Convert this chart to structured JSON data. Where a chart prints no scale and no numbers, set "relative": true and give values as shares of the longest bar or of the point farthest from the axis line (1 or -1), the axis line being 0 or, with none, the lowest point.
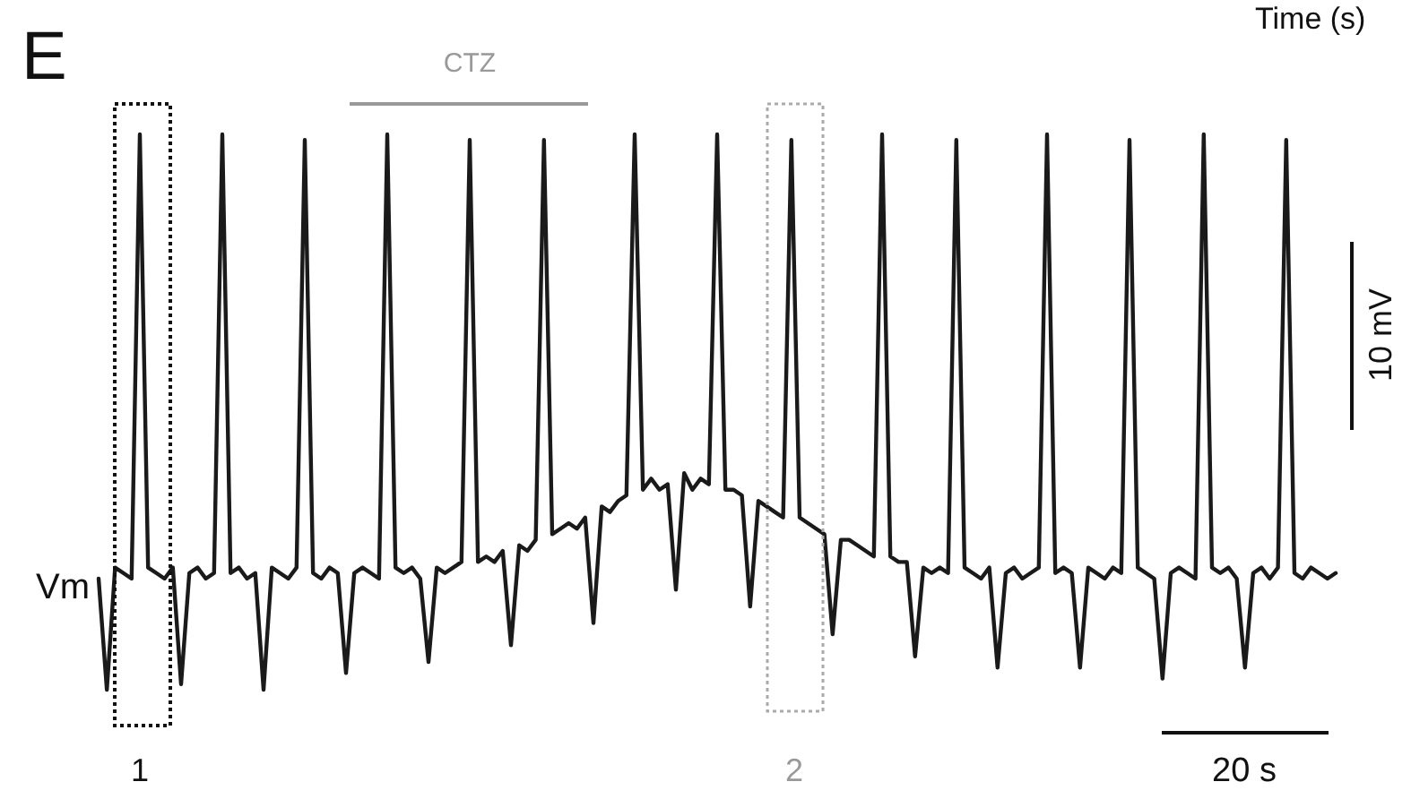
{
  "chart_data": {
    "type": "line",
    "relative": true,
    "color": "#1a1a1a",
    "ylabel": "Vm",
    "annotations": [
      "E",
      "Time (s)",
      "CTZ",
      "1",
      "2",
      "10 mV",
      "20 s"
    ],
    "categories": [
      null,
      null,
      null,
      null,
      null,
      null,
      null,
      null,
      null,
      null,
      null,
      null,
      null,
      null,
      null,
      null,
      null,
      null,
      null,
      null,
      null,
      null,
      null,
      null,
      null,
      null,
      null,
      null,
      null,
      null,
      null,
      null,
      null,
      null,
      null,
      null,
      null,
      null,
      null,
      null,
      null,
      null,
      null,
      null,
      null,
      null,
      null,
      null,
      null,
      null,
      null,
      null,
      null,
      null,
      null,
      null,
      null,
      null,
      null,
      null,
      null,
      null,
      null,
      null,
      null,
      null,
      null,
      null,
      null,
      null,
      null,
      null,
      null,
      null,
      null,
      null,
      null,
      null,
      null,
      null,
      null,
      null,
      null,
      null,
      null,
      null,
      null,
      null,
      null,
      null,
      null,
      null,
      null,
      null,
      null,
      null,
      null,
      null,
      null,
      null,
      null,
      null,
      null,
      null,
      null,
      null,
      null,
      null,
      null,
      null,
      null,
      null,
      null,
      null,
      null,
      null,
      null,
      null,
      null,
      null,
      null,
      null,
      null,
      null,
      null,
      null,
      null,
      null,
      null,
      null,
      null,
      null,
      null,
      null,
      null,
      null,
      null,
      null,
      null,
      null,
      null,
      null,
      null,
      null,
      null,
      null,
      null,
      null,
      null,
      null,
      null
    ],
    "values": [
      0.2,
      0,
      0.22,
      0.21,
      0.2,
      1,
      0.22,
      0.21,
      0.2,
      0.22,
      0.01,
      0.21,
      0.22,
      0.2,
      0.21,
      1,
      0.21,
      0.22,
      0.2,
      0.21,
      0,
      0.22,
      0.21,
      0.2,
      0.22,
      0.99,
      0.21,
      0.2,
      0.22,
      0.21,
      0.03,
      0.21,
      0.22,
      0.21,
      0.2,
      1,
      0.22,
      0.21,
      0.22,
      0.2,
      0.05,
      0.22,
      0.21,
      0.22,
      0.23,
      0.99,
      0.23,
      0.24,
      0.23,
      0.25,
      0.08,
      0.26,
      0.25,
      0.27,
      0.99,
      0.28,
      0.29,
      0.3,
      0.29,
      0.31,
      0.12,
      0.33,
      0.32,
      0.34,
      0.35,
      1,
      0.36,
      0.38,
      0.36,
      0.37,
      0.18,
      0.39,
      0.36,
      0.38,
      0.37,
      1,
      0.36,
      0.36,
      0.35,
      0.15,
      0.34,
      0.33,
      0.32,
      0.31,
      0.99,
      0.31,
      0.3,
      0.29,
      0.28,
      0.1,
      0.27,
      0.27,
      0.26,
      0.25,
      0.24,
      1,
      0.24,
      0.23,
      0.23,
      0.06,
      0.22,
      0.21,
      0.22,
      0.21,
      0.99,
      0.22,
      0.21,
      0.2,
      0.22,
      0.04,
      0.21,
      0.22,
      0.2,
      0.21,
      0.22,
      1,
      0.21,
      0.22,
      0.21,
      0.04,
      0.22,
      0.21,
      0.2,
      0.22,
      0.21,
      0.99,
      0.22,
      0.21,
      0.2,
      0.02,
      0.21,
      0.22,
      0.21,
      0.2,
      1,
      0.22,
      0.21,
      0.22,
      0.2,
      0.04,
      0.21,
      0.22,
      0.2,
      0.22,
      0.99,
      0.21,
      0.2,
      0.22,
      0.21,
      0.2,
      0.21
    ]
  }
}
